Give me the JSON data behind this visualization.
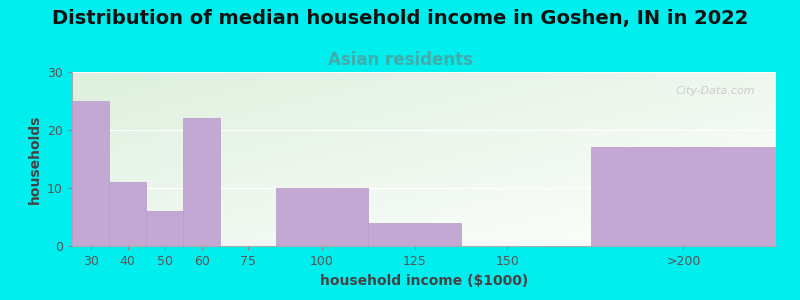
{
  "title": "Distribution of median household income in Goshen, IN in 2022",
  "subtitle": "Asian residents",
  "xlabel": "household income ($1000)",
  "ylabel": "households",
  "background_color": "#00EEEE",
  "bar_color": "#c4a8d4",
  "bar_edge_color": "#b898c8",
  "categories": [
    "30",
    "40",
    "50",
    "60",
    "75",
    "100",
    "125",
    "150",
    ">200"
  ],
  "values": [
    25,
    11,
    6,
    22,
    0,
    10,
    4,
    0,
    17
  ],
  "bar_lefts": [
    20,
    30,
    40,
    50,
    60,
    75,
    100,
    125,
    160
  ],
  "bar_rights": [
    30,
    40,
    50,
    60,
    75,
    100,
    125,
    150,
    210
  ],
  "tick_labels": [
    "30",
    "40",
    "50",
    "60",
    "75",
    "100",
    "125",
    "150",
    ">200"
  ],
  "xlim": [
    20,
    210
  ],
  "ylim": [
    0,
    30
  ],
  "yticks": [
    0,
    10,
    20,
    30
  ],
  "watermark": "City-Data.com",
  "title_fontsize": 14,
  "subtitle_fontsize": 12,
  "axis_label_fontsize": 10,
  "tick_fontsize": 9,
  "title_color": "#111111",
  "subtitle_color": "#44aaaa",
  "axis_label_color": "#444444",
  "tick_color": "#555555"
}
